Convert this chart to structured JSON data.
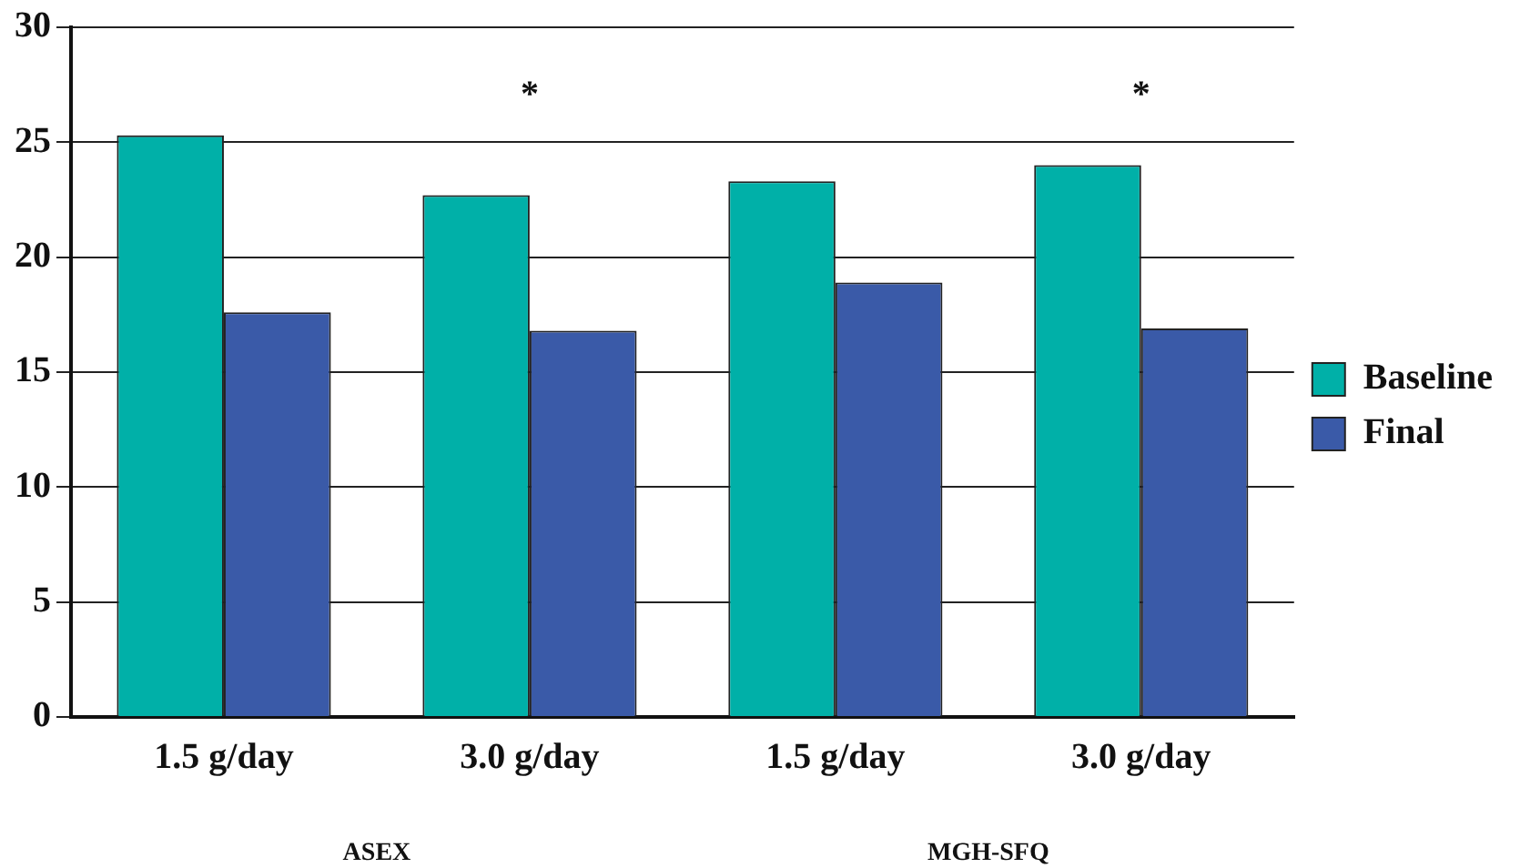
{
  "chart_data": {
    "type": "bar",
    "categories": [
      "1.5 g/day",
      "3.0 g/day",
      "1.5 g/day",
      "3.0 g/day"
    ],
    "series": [
      {
        "name": "Baseline",
        "color": "#00b0a8",
        "values": [
          25.3,
          22.7,
          23.3,
          24.0
        ]
      },
      {
        "name": "Final",
        "color": "#3a5aa8",
        "values": [
          17.6,
          16.8,
          18.9,
          16.9
        ]
      }
    ],
    "ylim": [
      0,
      30
    ],
    "yticks": [
      0,
      5,
      10,
      15,
      20,
      25,
      30
    ],
    "grid": "y",
    "legend": "right",
    "annotations": [
      "*",
      "*",
      "ASEX",
      "MGH-SFQ"
    ]
  }
}
